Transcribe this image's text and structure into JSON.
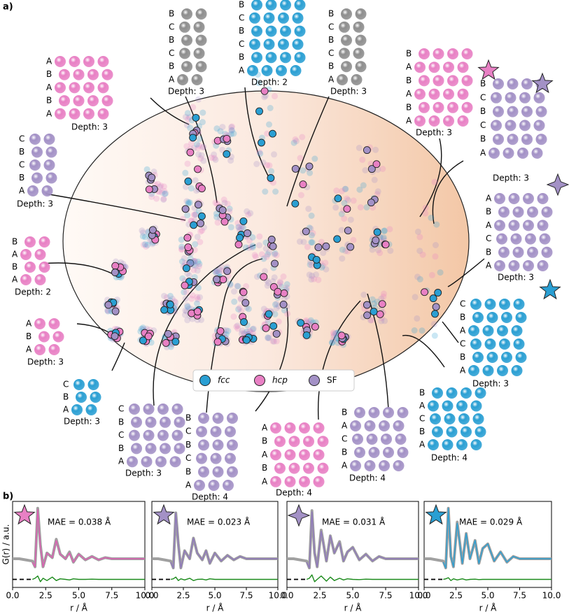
{
  "panel_labels": [
    "a)",
    "b)"
  ],
  "panel_a": {
    "structures": [
      {
        "layers": [
          "A",
          "B",
          "A",
          "B",
          "A"
        ],
        "depth": "Depth: 3",
        "color": "#e880c4"
      },
      {
        "layers": [
          "C",
          "B",
          "C",
          "B",
          "A"
        ],
        "depth": "Depth: 3",
        "color": "#a391c6"
      },
      {
        "layers": [
          "B",
          "A",
          "B",
          "A"
        ],
        "depth": "Depth: 2",
        "color": "#e880c4"
      },
      {
        "layers": [
          "A",
          "B",
          "A"
        ],
        "depth": "Depth: 3",
        "color": "#e880c4"
      },
      {
        "layers": [
          "C",
          "B",
          "A"
        ],
        "depth": "Depth: 3",
        "color": "#2a9fd3"
      },
      {
        "layers": [
          "B",
          "C",
          "B",
          "C",
          "B",
          "A"
        ],
        "depth": "Depth: 3",
        "color": "#8e8e8e"
      },
      {
        "layers": [
          "B",
          "C",
          "B",
          "C",
          "B",
          "A"
        ],
        "depth": "Depth: 2",
        "color": "#2a9fd3"
      },
      {
        "layers": [
          "B",
          "C",
          "B",
          "C",
          "B",
          "A"
        ],
        "depth": "Depth: 3",
        "color": "#8e8e8e"
      },
      {
        "layers": [
          "B",
          "A",
          "B",
          "A",
          "B",
          "A"
        ],
        "depth": "Depth: 3",
        "color": "#e880c4",
        "marker": "star"
      },
      {
        "layers": [
          "B",
          "C",
          "B",
          "C",
          "B",
          "A"
        ],
        "depth": "Depth: 3",
        "color": "#a391c6",
        "marker": "star"
      },
      {
        "layers": [
          "A",
          "B",
          "A",
          "C",
          "B",
          "A"
        ],
        "depth": "Depth: 3",
        "color": "#a391c6",
        "marker": "diamond"
      },
      {
        "layers": [
          "C",
          "B",
          "A",
          "C",
          "B",
          "A"
        ],
        "depth": "Depth: 3",
        "color": "#2a9fd3",
        "marker": "star"
      },
      {
        "layers": [
          "B",
          "A",
          "C",
          "B",
          "A"
        ],
        "depth": "Depth: 4",
        "color": "#2a9fd3"
      },
      {
        "layers": [
          "B",
          "A",
          "C",
          "B",
          "A"
        ],
        "depth": "Depth: 4",
        "color": "#a391c6"
      },
      {
        "layers": [
          "A",
          "B",
          "A",
          "B",
          "A"
        ],
        "depth": "Depth: 4",
        "color": "#e880c4"
      },
      {
        "layers": [
          "B",
          "C",
          "B",
          "C",
          "B",
          "A"
        ],
        "depth": "Depth: 4",
        "color": "#a391c6"
      },
      {
        "layers": [
          "C",
          "B",
          "C",
          "B",
          "A"
        ],
        "depth": "Depth: 3",
        "color": "#a391c6"
      }
    ],
    "legend": [
      {
        "label": "fcc",
        "color": "#2a9fd3"
      },
      {
        "label": "hcp",
        "color": "#e880c4"
      },
      {
        "label": "SF",
        "color": "#a391c6"
      }
    ]
  },
  "chart_data": [
    {
      "type": "line",
      "annotation": "MAE = 0.038 Å",
      "xlabel": "r / Å",
      "ylabel": "G(r) / a.u.",
      "marker": "star",
      "marker_color": "#e880c4",
      "x": [
        0,
        0.5,
        1,
        1.5,
        1.7,
        1.9,
        2.1,
        2.3,
        2.6,
        3,
        3.3,
        3.6,
        4,
        4.3,
        4.6,
        5,
        5.5,
        6,
        6.5,
        7,
        7.5,
        8,
        9,
        10
      ],
      "series": [
        {
          "color": "#a0a0a0",
          "values": [
            1.0,
            1.0,
            0.9,
            0.8,
            0.3,
            5.4,
            2.2,
            0.3,
            1.5,
            1.1,
            2.7,
            1.4,
            1.0,
            1.6,
            0.7,
            1.4,
            0.9,
            1.2,
            0.9,
            1.1,
            1.0,
            1.0,
            1.0,
            1.0
          ]
        },
        {
          "color": "#e05cb4",
          "values": [
            null,
            null,
            null,
            0.7,
            0.3,
            5.3,
            2.1,
            0.3,
            1.5,
            1.1,
            2.6,
            1.4,
            1.0,
            1.5,
            0.7,
            1.4,
            0.9,
            1.2,
            0.9,
            1.1,
            1.0,
            1.0,
            1.0,
            1.0
          ]
        },
        {
          "color": "#1a8a1a",
          "values": [
            null,
            null,
            null,
            -0.8,
            -0.7,
            -0.5,
            -1.0,
            -0.7,
            -0.9,
            -0.6,
            -0.9,
            -0.75,
            -0.8,
            -0.85,
            -0.75,
            -0.8,
            -0.8,
            -0.78,
            -0.8,
            -0.8,
            -0.8,
            -0.8,
            -0.8,
            -0.8
          ]
        },
        {
          "color": "#000000",
          "dashed": true,
          "values": [
            -0.8,
            -0.8,
            -0.8,
            -0.8,
            null,
            null,
            null,
            null,
            null,
            null,
            null,
            null,
            null,
            null,
            null,
            null,
            null,
            null,
            null,
            null,
            null,
            null,
            null,
            null
          ]
        }
      ],
      "xlim": [
        0,
        10
      ],
      "ylim": [
        -1.5,
        6
      ],
      "xticks": [
        {
          "value": 0,
          "label": "0.0"
        },
        {
          "value": 2.5,
          "label": "2.5"
        },
        {
          "value": 5,
          "label": "5.0"
        },
        {
          "value": 7.5,
          "label": "7.5"
        },
        {
          "value": 10,
          "label": "10.0"
        }
      ]
    },
    {
      "type": "line",
      "annotation": "MAE = 0.023 Å",
      "xlabel": "r / Å",
      "marker": "star",
      "marker_color": "#a391c6",
      "x": [
        0,
        0.5,
        1,
        1.5,
        1.7,
        1.9,
        2.1,
        2.3,
        2.6,
        3,
        3.3,
        3.6,
        4,
        4.3,
        4.6,
        5,
        5.5,
        6,
        6.5,
        7,
        7.5,
        8,
        9,
        10
      ],
      "series": [
        {
          "color": "#a0a0a0",
          "values": [
            1.0,
            1.0,
            0.9,
            0.8,
            0.2,
            5.0,
            2.3,
            0.2,
            1.7,
            1.0,
            2.8,
            1.5,
            0.9,
            1.7,
            0.6,
            1.5,
            0.8,
            1.3,
            0.9,
            1.2,
            1.0,
            1.0,
            1.0,
            1.0
          ]
        },
        {
          "color": "#8f78bd",
          "values": [
            null,
            null,
            null,
            0.7,
            0.2,
            5.0,
            2.3,
            0.2,
            1.7,
            1.0,
            2.8,
            1.5,
            0.9,
            1.7,
            0.6,
            1.5,
            0.8,
            1.3,
            0.9,
            1.2,
            1.0,
            1.0,
            1.0,
            1.0
          ]
        },
        {
          "color": "#1a8a1a",
          "values": [
            null,
            null,
            null,
            -0.8,
            -0.75,
            -0.6,
            -0.9,
            -0.75,
            -0.85,
            -0.7,
            -0.9,
            -0.8,
            -0.78,
            -0.85,
            -0.75,
            -0.8,
            -0.8,
            -0.8,
            -0.8,
            -0.8,
            -0.8,
            -0.8,
            -0.8,
            -0.8
          ]
        },
        {
          "color": "#000000",
          "dashed": true,
          "values": [
            -0.8,
            -0.8,
            -0.8,
            -0.8,
            null,
            null,
            null,
            null,
            null,
            null,
            null,
            null,
            null,
            null,
            null,
            null,
            null,
            null,
            null,
            null,
            null,
            null,
            null,
            null
          ]
        }
      ],
      "xlim": [
        0,
        10
      ],
      "ylim": [
        -1.5,
        6
      ],
      "xticks": [
        {
          "value": 0,
          "label": "0.0"
        },
        {
          "value": 2.5,
          "label": "2.5"
        },
        {
          "value": 5,
          "label": "5.0"
        },
        {
          "value": 7.5,
          "label": "7.5"
        },
        {
          "value": 10,
          "label": "10.0"
        }
      ]
    },
    {
      "type": "line",
      "annotation": "MAE = 0.031 Å",
      "xlabel": "r / Å",
      "marker": "diamond",
      "marker_color": "#a391c6",
      "x": [
        0,
        0.5,
        1,
        1.5,
        1.7,
        1.9,
        2.1,
        2.3,
        2.6,
        3,
        3.3,
        3.6,
        4,
        4.3,
        4.6,
        5,
        5.5,
        6,
        6.5,
        7,
        7.5,
        8,
        9,
        10
      ],
      "series": [
        {
          "color": "#a0a0a0",
          "values": [
            1.0,
            1.0,
            0.9,
            0.8,
            0.2,
            5.2,
            1.5,
            0.3,
            3.5,
            0.8,
            3.0,
            1.5,
            2.5,
            0.8,
            1.6,
            2.0,
            0.9,
            1.4,
            0.8,
            1.2,
            1.0,
            1.0,
            1.0,
            1.0
          ]
        },
        {
          "color": "#8f78bd",
          "values": [
            null,
            null,
            null,
            0.7,
            0.2,
            5.1,
            1.5,
            0.3,
            3.4,
            0.8,
            3.0,
            1.5,
            2.4,
            0.8,
            1.6,
            2.0,
            0.9,
            1.4,
            0.8,
            1.2,
            1.0,
            1.0,
            1.0,
            1.0
          ]
        },
        {
          "color": "#1a8a1a",
          "values": [
            null,
            null,
            null,
            -0.8,
            -0.7,
            -0.4,
            -1.0,
            -0.8,
            -0.5,
            -0.95,
            -0.6,
            -0.9,
            -0.7,
            -0.85,
            -0.75,
            -0.8,
            -0.82,
            -0.78,
            -0.8,
            -0.8,
            -0.8,
            -0.8,
            -0.8,
            -0.8
          ]
        },
        {
          "color": "#000000",
          "dashed": true,
          "values": [
            -0.8,
            -0.8,
            -0.8,
            -0.8,
            null,
            null,
            null,
            null,
            null,
            null,
            null,
            null,
            null,
            null,
            null,
            null,
            null,
            null,
            null,
            null,
            null,
            null,
            null,
            null
          ]
        }
      ],
      "xlim": [
        0,
        10
      ],
      "ylim": [
        -1.5,
        6
      ],
      "xticks": [
        {
          "value": 0,
          "label": "0.0"
        },
        {
          "value": 2.5,
          "label": "2.5"
        },
        {
          "value": 5,
          "label": "5.0"
        },
        {
          "value": 7.5,
          "label": "7.5"
        },
        {
          "value": 10,
          "label": "10.0"
        }
      ]
    },
    {
      "type": "line",
      "annotation": "MAE = 0.029 Å",
      "xlabel": "r / Å",
      "marker": "star",
      "marker_color": "#2a9fd3",
      "x": [
        0,
        0.5,
        1,
        1.5,
        1.7,
        1.9,
        2.1,
        2.3,
        2.6,
        3,
        3.3,
        3.6,
        4,
        4.3,
        4.6,
        5,
        5.5,
        6,
        6.5,
        7,
        7.5,
        8,
        9,
        10
      ],
      "series": [
        {
          "color": "#a0a0a0",
          "values": [
            1.0,
            1.0,
            0.9,
            0.8,
            0.2,
            5.4,
            1.2,
            0.3,
            4.2,
            0.6,
            3.2,
            1.0,
            2.6,
            0.6,
            1.9,
            2.3,
            0.8,
            1.6,
            0.7,
            1.2,
            1.0,
            1.0,
            1.0,
            1.0
          ]
        },
        {
          "color": "#2a9fd3",
          "values": [
            null,
            null,
            null,
            0.7,
            0.2,
            5.4,
            1.2,
            0.3,
            4.1,
            0.6,
            3.2,
            1.0,
            2.6,
            0.6,
            1.9,
            2.3,
            0.8,
            1.6,
            0.7,
            1.2,
            1.0,
            1.0,
            1.0,
            1.0
          ]
        },
        {
          "color": "#1a8a1a",
          "values": [
            null,
            null,
            null,
            -0.8,
            -0.75,
            -0.65,
            -0.9,
            -0.75,
            -0.85,
            -0.75,
            -0.85,
            -0.8,
            -0.78,
            -0.82,
            -0.8,
            -0.8,
            -0.8,
            -0.8,
            -0.8,
            -0.8,
            -0.8,
            -0.8,
            -0.8,
            -0.8
          ]
        },
        {
          "color": "#000000",
          "dashed": true,
          "values": [
            -0.8,
            -0.8,
            -0.8,
            -0.8,
            null,
            null,
            null,
            null,
            null,
            null,
            null,
            null,
            null,
            null,
            null,
            null,
            null,
            null,
            null,
            null,
            null,
            null,
            null,
            null
          ]
        }
      ],
      "xlim": [
        0,
        10
      ],
      "ylim": [
        -1.5,
        6
      ],
      "xticks": [
        {
          "value": 0,
          "label": "0.0"
        },
        {
          "value": 2.5,
          "label": "2.5"
        },
        {
          "value": 5,
          "label": "5.0"
        },
        {
          "value": 7.5,
          "label": "7.5"
        },
        {
          "value": 10,
          "label": "10.0"
        }
      ]
    }
  ]
}
